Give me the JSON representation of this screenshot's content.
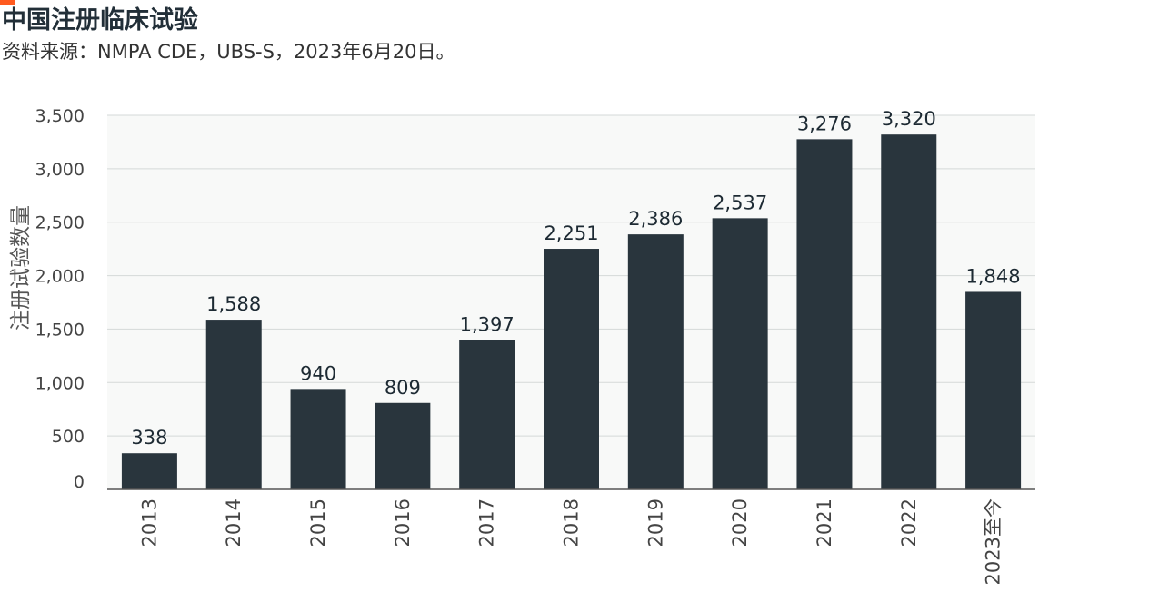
{
  "header": {
    "title": "中国注册临床试验",
    "subtitle": "资料来源：NMPA CDE，UBS-S，2023年6月20日。"
  },
  "colors": {
    "accent": "#ff5a1f",
    "bar": "#29353d",
    "plot_background": "#f8f9f8",
    "gridline": "#d5d9d8",
    "text": "#1d2a33"
  },
  "chart_data": {
    "type": "bar",
    "title": "中国注册临床试验",
    "ylabel": "注册试验数量",
    "xlabel": "",
    "categories": [
      "2013",
      "2014",
      "2015",
      "2016",
      "2017",
      "2018",
      "2019",
      "2020",
      "2021",
      "2022",
      "2023至今"
    ],
    "values": [
      338,
      1588,
      940,
      809,
      1397,
      2251,
      2386,
      2537,
      3276,
      3320,
      1848
    ],
    "data_labels": [
      "338",
      "1,588",
      "940",
      "809",
      "1,397",
      "2,251",
      "2,386",
      "2,537",
      "3,276",
      "3,320",
      "1,848"
    ],
    "ylim": [
      0,
      3500
    ],
    "yticks": [
      0,
      500,
      1000,
      1500,
      2000,
      2500,
      3000,
      3500
    ],
    "ytick_labels": [
      "0",
      "500",
      "1,000",
      "1,500",
      "2,000",
      "2,500",
      "3,000",
      "3,500"
    ],
    "grid": true,
    "legend": "none"
  }
}
